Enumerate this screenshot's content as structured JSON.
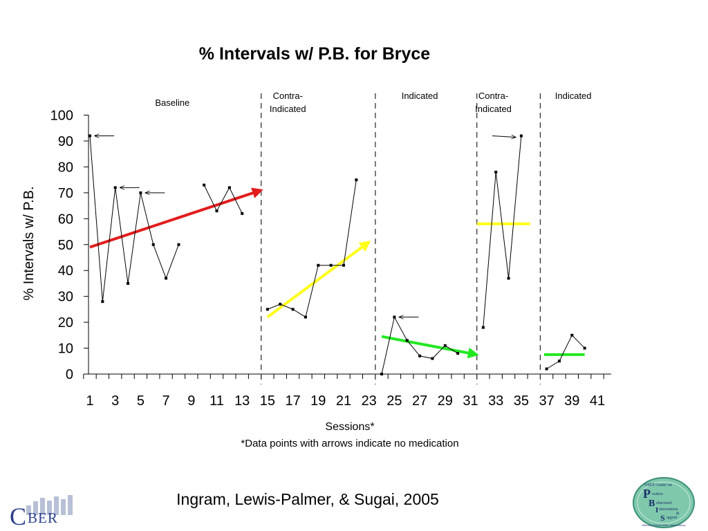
{
  "chart_data": {
    "type": "line",
    "title": "% Intervals w/ P.B. for Bryce",
    "ylabel": "% Intervals w/ P.B.",
    "xlabel": "Sessions*",
    "footnote": "*Data points with arrows indicate no medication",
    "xlim": [
      1,
      41
    ],
    "ylim": [
      0,
      100
    ],
    "yticks": [
      0,
      10,
      20,
      30,
      40,
      50,
      60,
      70,
      80,
      90,
      100
    ],
    "xticks": [
      1,
      3,
      5,
      7,
      9,
      11,
      13,
      15,
      17,
      19,
      21,
      23,
      25,
      27,
      29,
      31,
      33,
      35,
      37,
      39,
      41
    ],
    "grid": false,
    "phase_lines": [
      14.5,
      23.5,
      31.5,
      36.5
    ],
    "phases": [
      {
        "lines": [
          "Baseline"
        ],
        "x": 7.5
      },
      {
        "lines": [
          "Contra-",
          "Indicated"
        ],
        "x": 16.6
      },
      {
        "lines": [
          "Indicated"
        ],
        "x": 27
      },
      {
        "lines": [
          "Contra-",
          "Indicated"
        ],
        "x": 32.8
      },
      {
        "lines": [
          "Indicated"
        ],
        "x": 39.1
      }
    ],
    "segments": [
      {
        "x": [
          1,
          2,
          3,
          4,
          5,
          6,
          7,
          8
        ],
        "y": [
          92,
          28,
          72,
          35,
          70,
          50,
          37,
          50
        ]
      },
      {
        "x": [
          10,
          11,
          12,
          13
        ],
        "y": [
          73,
          63,
          72,
          62
        ]
      },
      {
        "x": [
          15,
          16,
          17,
          18,
          19,
          20,
          21,
          22
        ],
        "y": [
          25,
          27,
          25,
          22,
          42,
          42,
          42,
          75
        ]
      },
      {
        "x": [
          24,
          25,
          26,
          27,
          28,
          29,
          30
        ],
        "y": [
          0,
          22,
          13,
          7,
          6,
          11,
          8
        ]
      },
      {
        "x": [
          32,
          33,
          34,
          35
        ],
        "y": [
          18,
          78,
          37,
          92
        ]
      },
      {
        "x": [
          37,
          38,
          39,
          40
        ],
        "y": [
          2,
          5,
          15,
          10
        ]
      }
    ],
    "no_medication_points": [
      {
        "x": 1,
        "y": 92,
        "pointer_from": "right"
      },
      {
        "x": 3,
        "y": 72,
        "pointer_from": "right"
      },
      {
        "x": 5,
        "y": 70,
        "pointer_from": "right"
      },
      {
        "x": 25,
        "y": 22,
        "pointer_from": "right"
      },
      {
        "x": 35,
        "y": 92,
        "pointer_from": "left"
      }
    ],
    "trend_lines": [
      {
        "color": "#e21b1b",
        "x": [
          1,
          14.5
        ],
        "y": [
          49,
          71
        ],
        "arrow": true
      },
      {
        "color": "#ffff1a",
        "x": [
          15,
          23
        ],
        "y": [
          22,
          51
        ],
        "arrow": true
      },
      {
        "color": "#22e822",
        "x": [
          24,
          31.5
        ],
        "y": [
          14.5,
          7.5
        ],
        "arrow": true
      },
      {
        "color": "#ffff1a",
        "x": [
          31.5,
          35.7
        ],
        "y": [
          58,
          58
        ],
        "arrow": false
      },
      {
        "color": "#22e822",
        "x": [
          36.8,
          40
        ],
        "y": [
          7.5,
          7.5
        ],
        "arrow": false
      }
    ]
  },
  "citation": "Ingram,  Lewis-Palmer, & Sugai, 2005",
  "logos": {
    "cber": "CBER",
    "pbis": {
      "header": [
        "OSEP Center on"
      ],
      "words": [
        "Positive",
        "Behavioral",
        "Intervention",
        "&",
        "Support"
      ],
      "footer": "Effective School-Wide Interventions"
    }
  }
}
